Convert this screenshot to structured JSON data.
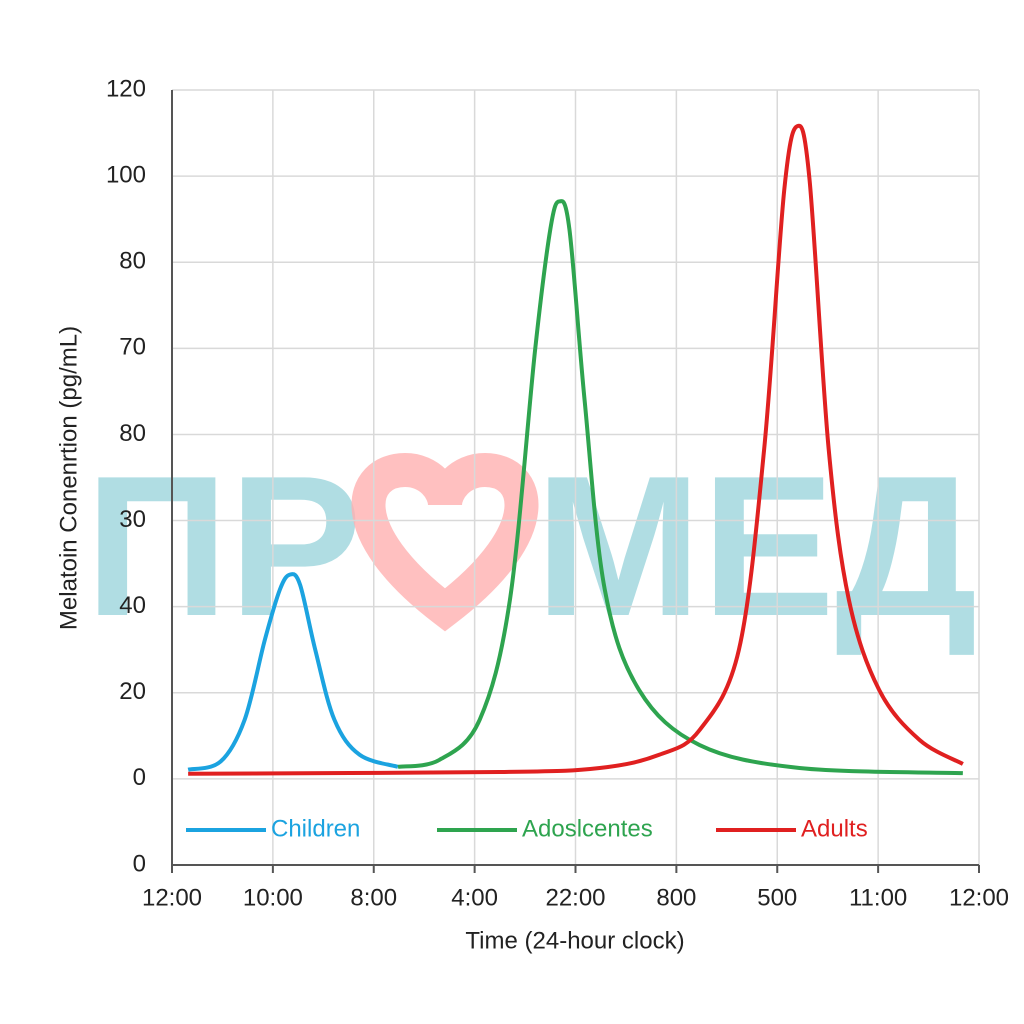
{
  "chart_data": {
    "type": "line",
    "ylabel": "Melatoin Conenrtion (pg/mL)",
    "xlabel": "Time (24-hour clock)",
    "watermark": [
      "ПР",
      "МЕД"
    ],
    "xlim": [
      0,
      8
    ],
    "xticks": [
      {
        "value": 0,
        "label": "12:00"
      },
      {
        "value": 1,
        "label": "10:00"
      },
      {
        "value": 2,
        "label": "8:00"
      },
      {
        "value": 3,
        "label": "4:00"
      },
      {
        "value": 4,
        "label": "22:00"
      },
      {
        "value": 5,
        "label": "800"
      },
      {
        "value": 6,
        "label": "500"
      },
      {
        "value": 7,
        "label": "11:00"
      },
      {
        "value": 8,
        "label": "12:00"
      }
    ],
    "ylim": [
      -15,
      120
    ],
    "yticks": [
      {
        "value": -15,
        "label": "0"
      },
      0,
      {
        "value": 15,
        "label": "20"
      },
      {
        "value": 30,
        "label": "40"
      },
      {
        "value": 45,
        "label": "30"
      },
      {
        "value": 60,
        "label": "80"
      },
      {
        "value": 75,
        "label": "70"
      },
      {
        "value": 90,
        "label": "80"
      },
      {
        "value": 105,
        "label": "100"
      },
      120
    ],
    "grid": true,
    "legend": "bottom",
    "series": [
      {
        "name": "Children",
        "color": "#1ba3e0",
        "x": [
          0.16,
          0.48,
          0.72,
          0.92,
          1.07,
          1.17,
          1.27,
          1.42,
          1.61,
          1.86,
          2.24
        ],
        "values": [
          1.6,
          3.0,
          10.3,
          24.2,
          33,
          35.6,
          33.8,
          22.5,
          10.3,
          4.2,
          2.1
        ]
      },
      {
        "name": "Adoslcentes",
        "color": "#2ea44f",
        "x": [
          2.24,
          2.65,
          3.05,
          3.35,
          3.6,
          3.75,
          3.84,
          3.94,
          4.09,
          4.29,
          4.63,
          5.23,
          6.22,
          7.84
        ],
        "values": [
          2.1,
          3.3,
          10.3,
          31.2,
          74.8,
          95.7,
          100.6,
          95.7,
          66,
          33,
          15.5,
          5.9,
          1.9,
          1.0
        ]
      },
      {
        "name": "Adults",
        "color": "#e02020",
        "x": [
          0.16,
          3.25,
          4.24,
          4.83,
          5.23,
          5.62,
          5.87,
          6.07,
          6.2,
          6.32,
          6.51,
          6.71,
          7.01,
          7.41,
          7.84
        ],
        "values": [
          0.9,
          1.2,
          1.9,
          4.2,
          8.5,
          22.5,
          57.4,
          102.7,
          113.7,
          104.4,
          57.4,
          31.2,
          15.5,
          6.8,
          2.6
        ]
      }
    ]
  }
}
